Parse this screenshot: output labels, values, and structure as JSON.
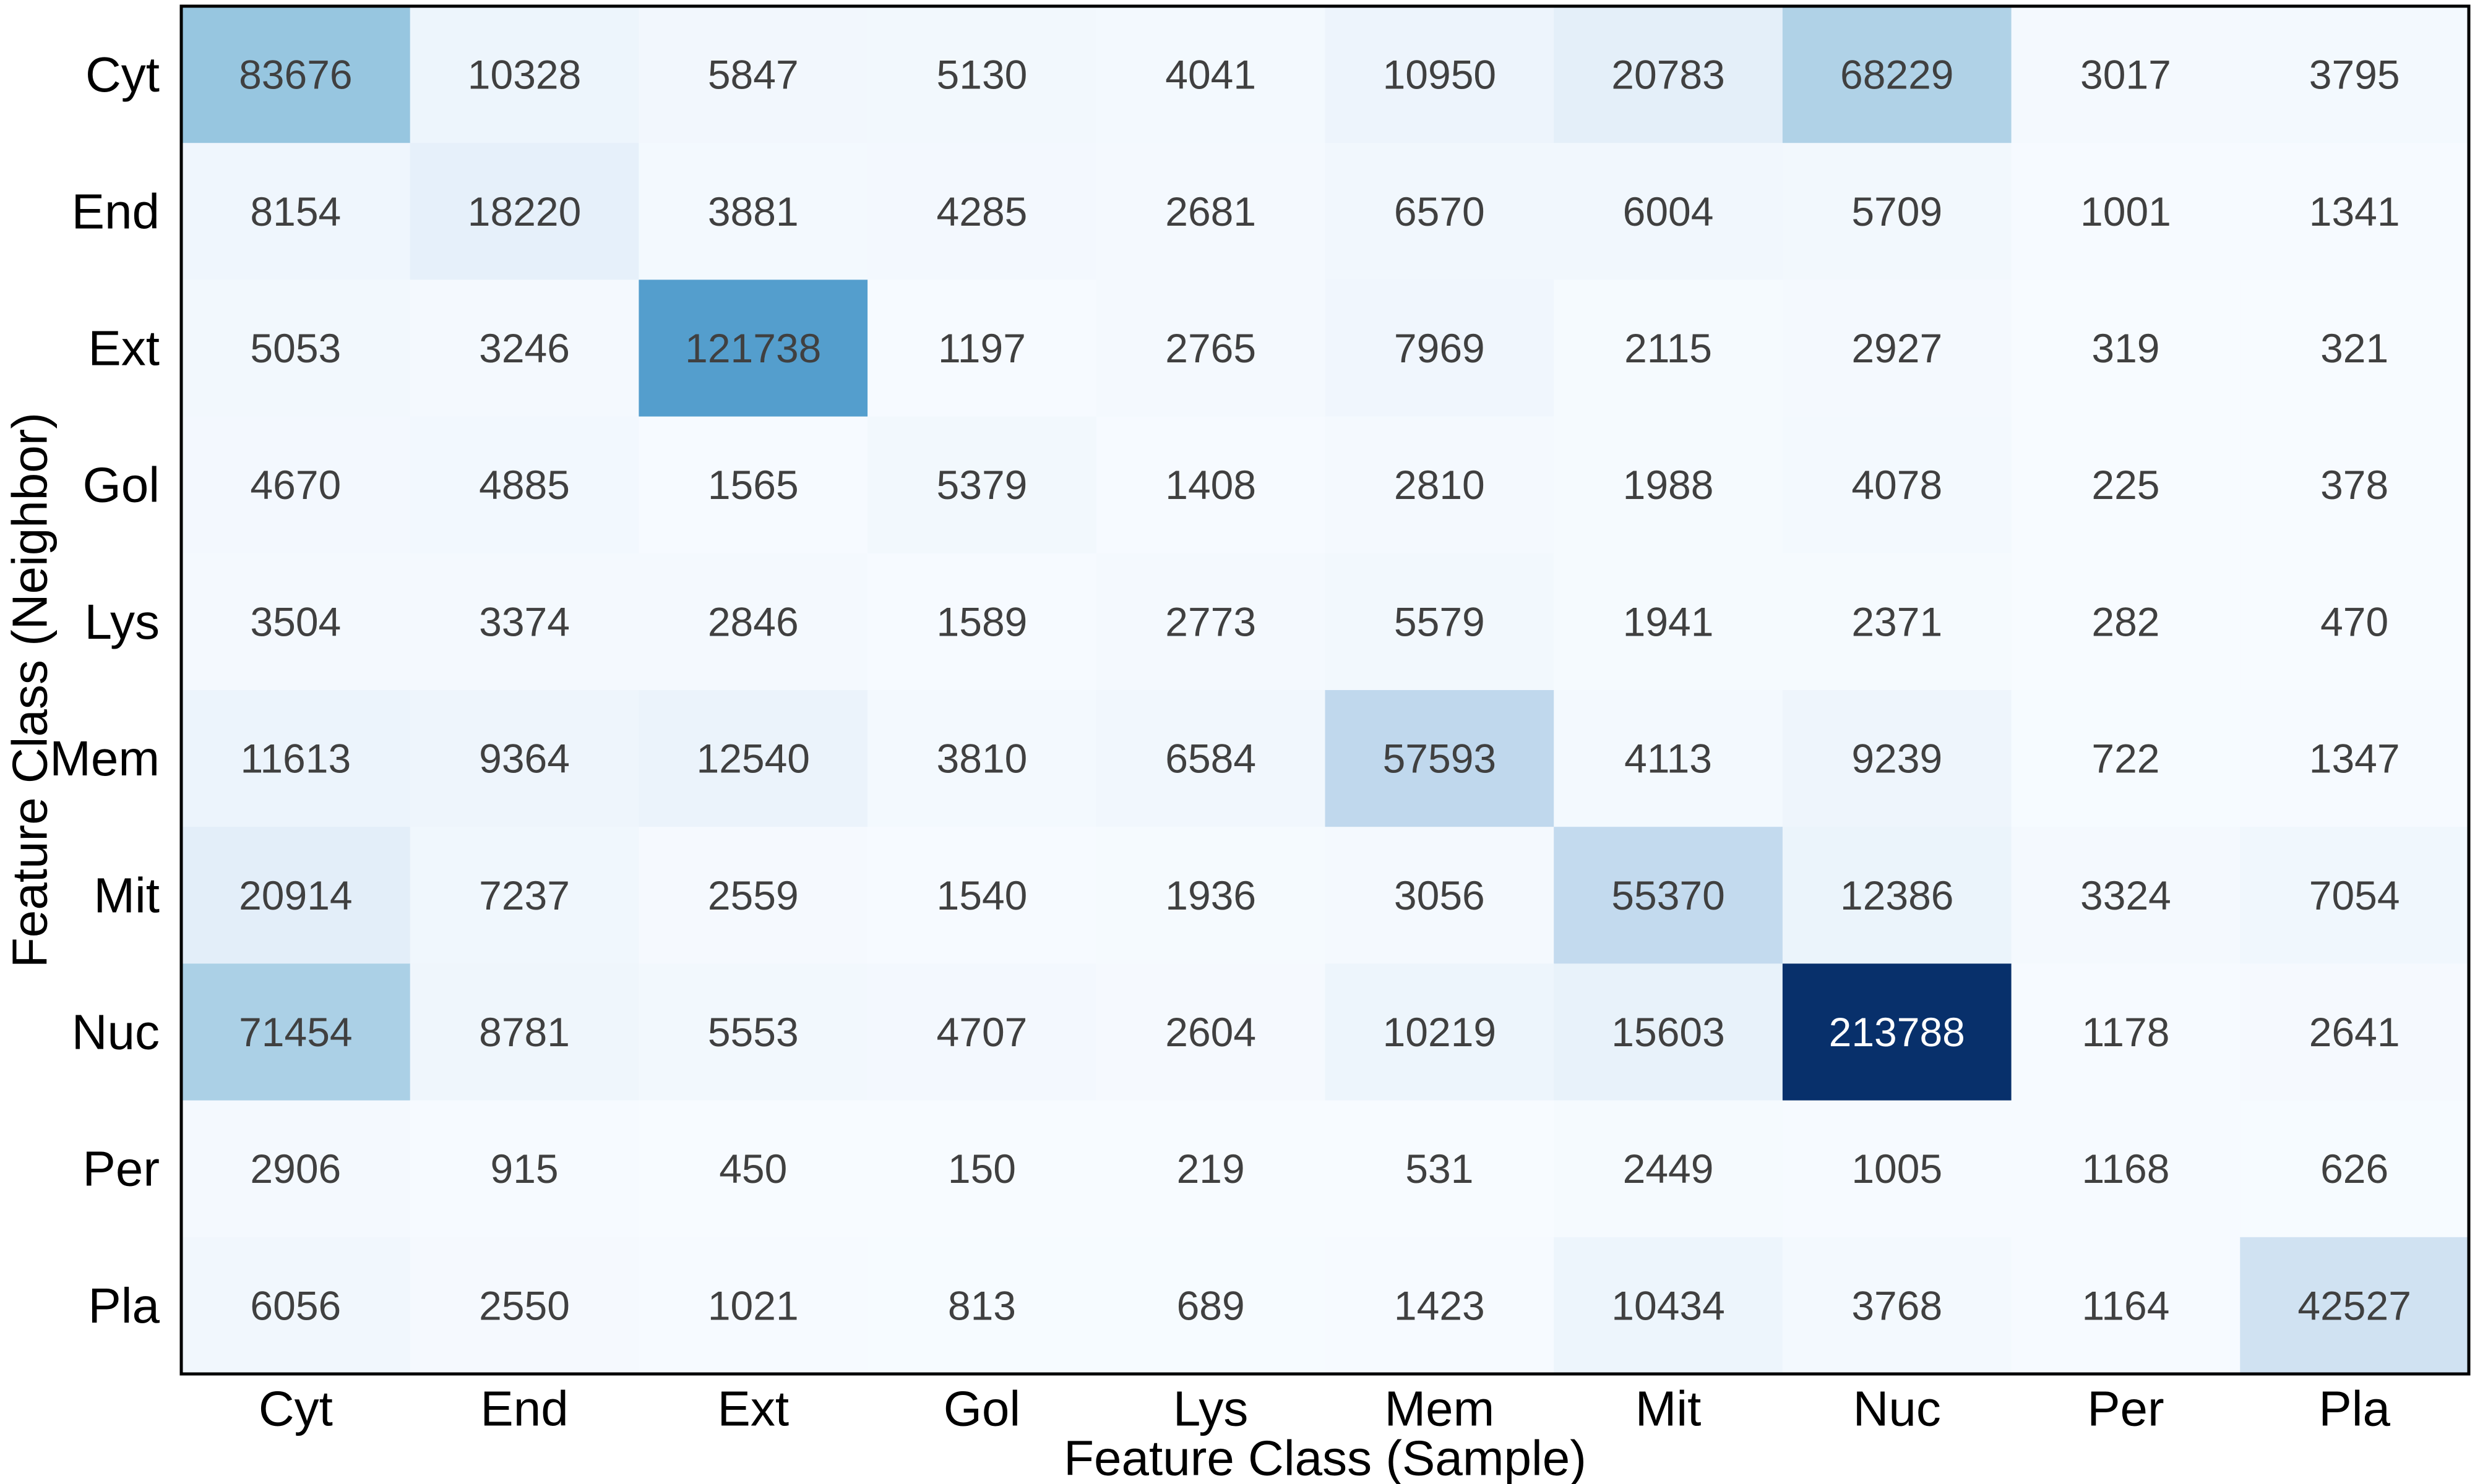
{
  "chart_data": {
    "type": "heatmap",
    "title": "",
    "xlabel": "Feature Class (Sample)",
    "ylabel": "Feature Class (Neighbor)",
    "x_categories": [
      "Cyt",
      "End",
      "Ext",
      "Gol",
      "Lys",
      "Mem",
      "Mit",
      "Nuc",
      "Per",
      "Pla"
    ],
    "y_categories": [
      "Cyt",
      "End",
      "Ext",
      "Gol",
      "Lys",
      "Mem",
      "Mit",
      "Nuc",
      "Per",
      "Pla"
    ],
    "values": [
      [
        83676,
        10328,
        5847,
        5130,
        4041,
        10950,
        20783,
        68229,
        3017,
        3795
      ],
      [
        8154,
        18220,
        3881,
        4285,
        2681,
        6570,
        6004,
        5709,
        1001,
        1341
      ],
      [
        5053,
        3246,
        121738,
        1197,
        2765,
        7969,
        2115,
        2927,
        319,
        321
      ],
      [
        4670,
        4885,
        1565,
        5379,
        1408,
        2810,
        1988,
        4078,
        225,
        378
      ],
      [
        3504,
        3374,
        2846,
        1589,
        2773,
        5579,
        1941,
        2371,
        282,
        470
      ],
      [
        11613,
        9364,
        12540,
        3810,
        6584,
        57593,
        4113,
        9239,
        722,
        1347
      ],
      [
        20914,
        7237,
        2559,
        1540,
        1936,
        3056,
        55370,
        12386,
        3324,
        7054
      ],
      [
        71454,
        8781,
        5553,
        4707,
        2604,
        10219,
        15603,
        213788,
        1178,
        2641
      ],
      [
        2906,
        915,
        450,
        150,
        219,
        531,
        2449,
        1005,
        1168,
        626
      ],
      [
        6056,
        2550,
        1021,
        813,
        689,
        1423,
        10434,
        3768,
        1164,
        42527
      ]
    ],
    "colormap": "Blues",
    "colorbar": false,
    "grid": false
  },
  "colors": {
    "low": "#f7fbff",
    "mid": "#6baed6",
    "high": "#08306b",
    "text_dark": "#404040",
    "text_light": "#ffffff",
    "border": "#000000"
  }
}
